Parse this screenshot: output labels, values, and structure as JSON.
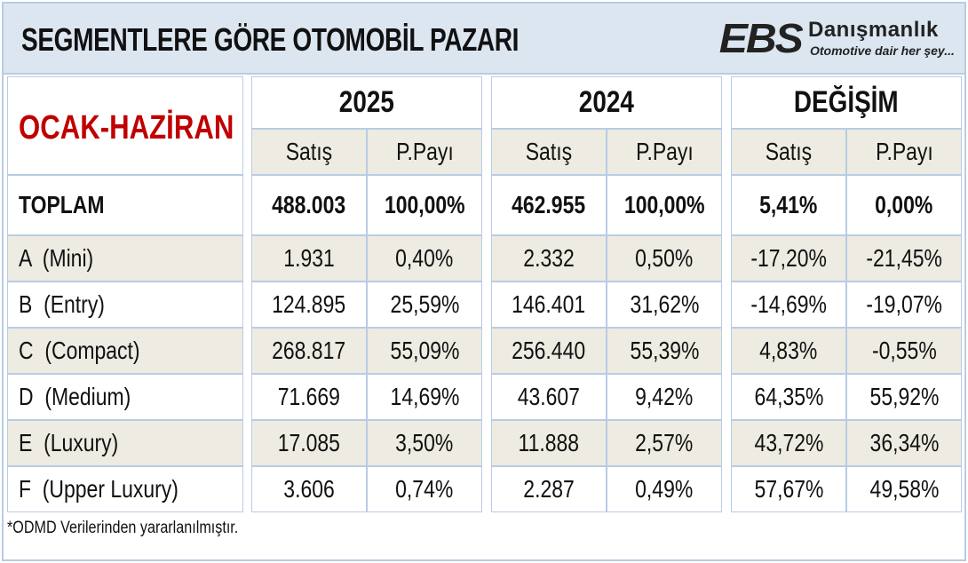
{
  "title": "SEGMENTLERE GÖRE OTOMOBİL PAZARI",
  "logo": {
    "brand": "EBS",
    "name": "Danışmanlık",
    "slogan": "Otomotive dair her şey..."
  },
  "colors": {
    "period": "#c00000",
    "border": "#b8cce4",
    "title_bg": "#dce6f1",
    "stripe": "#eeebe2"
  },
  "chart_data": {
    "type": "table",
    "period": "OCAK-HAZİRAN",
    "groups": [
      "2025",
      "2024",
      "DEĞİŞİM"
    ],
    "subheaders": [
      "Satış",
      "P.Payı"
    ],
    "rows": [
      {
        "label": "TOPLAM",
        "values": [
          "488.003",
          "100,00%",
          "462.955",
          "100,00%",
          "5,41%",
          "0,00%"
        ]
      },
      {
        "label": "A  (Mini)",
        "values": [
          "1.931",
          "0,40%",
          "2.332",
          "0,50%",
          "-17,20%",
          "-21,45%"
        ]
      },
      {
        "label": "B  (Entry)",
        "values": [
          "124.895",
          "25,59%",
          "146.401",
          "31,62%",
          "-14,69%",
          "-19,07%"
        ]
      },
      {
        "label": "C  (Compact)",
        "values": [
          "268.817",
          "55,09%",
          "256.440",
          "55,39%",
          "4,83%",
          "-0,55%"
        ]
      },
      {
        "label": "D  (Medium)",
        "values": [
          "71.669",
          "14,69%",
          "43.607",
          "9,42%",
          "64,35%",
          "55,92%"
        ]
      },
      {
        "label": "E  (Luxury)",
        "values": [
          "17.085",
          "3,50%",
          "11.888",
          "2,57%",
          "43,72%",
          "36,34%"
        ]
      },
      {
        "label": "F  (Upper Luxury)",
        "values": [
          "3.606",
          "0,74%",
          "2.287",
          "0,49%",
          "57,67%",
          "49,58%"
        ]
      }
    ],
    "footnote": "*ODMD Verilerinden yararlanılmıştır."
  }
}
